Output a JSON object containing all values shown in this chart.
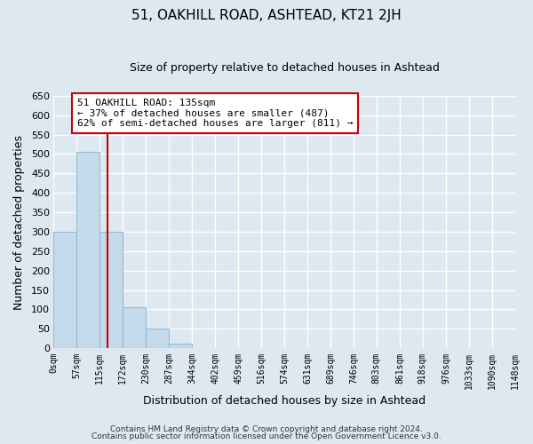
{
  "title1": "51, OAKHILL ROAD, ASHTEAD, KT21 2JH",
  "title2": "Size of property relative to detached houses in Ashtead",
  "xlabel": "Distribution of detached houses by size in Ashtead",
  "ylabel": "Number of detached properties",
  "bin_edges": [
    0,
    57,
    115,
    172,
    230,
    287,
    344,
    402,
    459,
    516,
    574,
    631,
    689,
    746,
    803,
    861,
    918,
    976,
    1033,
    1090,
    1148
  ],
  "bin_labels": [
    "0sqm",
    "57sqm",
    "115sqm",
    "172sqm",
    "230sqm",
    "287sqm",
    "344sqm",
    "402sqm",
    "459sqm",
    "516sqm",
    "574sqm",
    "631sqm",
    "689sqm",
    "746sqm",
    "803sqm",
    "861sqm",
    "918sqm",
    "976sqm",
    "1033sqm",
    "1090sqm",
    "1148sqm"
  ],
  "counts": [
    300,
    505,
    300,
    105,
    52,
    13,
    0,
    0,
    0,
    0,
    0,
    0,
    0,
    0,
    0,
    0,
    0,
    0,
    0,
    0
  ],
  "bar_color": "#c5daea",
  "bar_edge_color": "#90bdd4",
  "property_line_x": 135,
  "property_line_color": "#cc0000",
  "annotation_title": "51 OAKHILL ROAD: 135sqm",
  "annotation_line1": "← 37% of detached houses are smaller (487)",
  "annotation_line2": "62% of semi-detached houses are larger (811) →",
  "annotation_box_facecolor": "white",
  "annotation_box_edgecolor": "#cc0000",
  "ylim": [
    0,
    650
  ],
  "yticks": [
    0,
    50,
    100,
    150,
    200,
    250,
    300,
    350,
    400,
    450,
    500,
    550,
    600,
    650
  ],
  "footer1": "Contains HM Land Registry data © Crown copyright and database right 2024.",
  "footer2": "Contains public sector information licensed under the Open Government Licence v3.0.",
  "bg_color": "#dde8f0",
  "plot_bg_color": "#dde8f0",
  "grid_color": "#ffffff"
}
